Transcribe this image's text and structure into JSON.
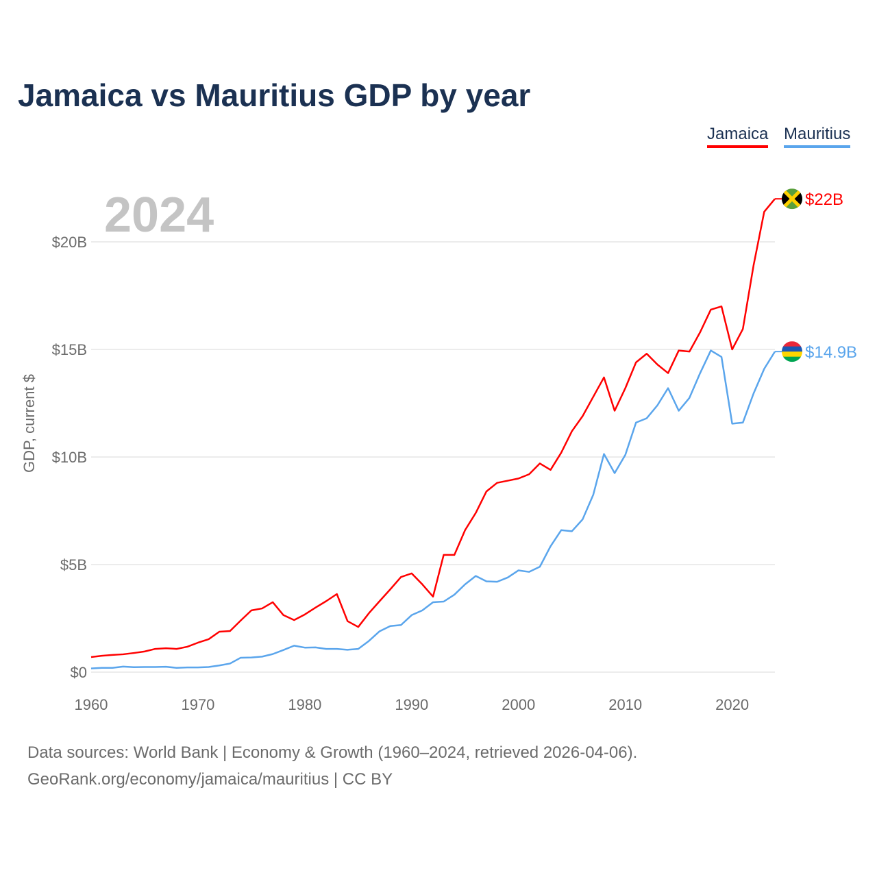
{
  "chart_data": {
    "type": "line",
    "title": "Jamaica vs Mauritius GDP by year",
    "ylabel": "GDP, current $",
    "xlabel": "",
    "year_label": "2024",
    "xlim": [
      1960,
      2024
    ],
    "ylim": [
      0,
      22
    ],
    "x_ticks": [
      1960,
      1970,
      1980,
      1990,
      2000,
      2010,
      2020
    ],
    "y_ticks": [
      {
        "value": 0,
        "label": "$0"
      },
      {
        "value": 5,
        "label": "$5B"
      },
      {
        "value": 10,
        "label": "$10B"
      },
      {
        "value": 15,
        "label": "$15B"
      },
      {
        "value": 20,
        "label": "$20B"
      }
    ],
    "grid": true,
    "legend_position": "top-right",
    "x": [
      1960,
      1961,
      1962,
      1963,
      1964,
      1965,
      1966,
      1967,
      1968,
      1969,
      1970,
      1971,
      1972,
      1973,
      1974,
      1975,
      1976,
      1977,
      1978,
      1979,
      1980,
      1981,
      1982,
      1983,
      1984,
      1985,
      1986,
      1987,
      1988,
      1989,
      1990,
      1991,
      1992,
      1993,
      1994,
      1995,
      1996,
      1997,
      1998,
      1999,
      2000,
      2001,
      2002,
      2003,
      2004,
      2005,
      2006,
      2007,
      2008,
      2009,
      2010,
      2011,
      2012,
      2013,
      2014,
      2015,
      2016,
      2017,
      2018,
      2019,
      2020,
      2021,
      2022,
      2023,
      2024
    ],
    "series": [
      {
        "name": "Jamaica",
        "color": "#ff0000",
        "end_label": "$22B",
        "flag": "jamaica-flag",
        "values": [
          0.7,
          0.76,
          0.8,
          0.83,
          0.89,
          0.96,
          1.08,
          1.11,
          1.08,
          1.18,
          1.37,
          1.53,
          1.88,
          1.91,
          2.4,
          2.87,
          2.96,
          3.25,
          2.65,
          2.42,
          2.68,
          3.0,
          3.3,
          3.63,
          2.37,
          2.1,
          2.74,
          3.3,
          3.85,
          4.42,
          4.59,
          4.08,
          3.51,
          5.45,
          5.45,
          6.6,
          7.4,
          8.4,
          8.8,
          8.9,
          9.0,
          9.2,
          9.7,
          9.4,
          10.2,
          11.2,
          11.9,
          12.8,
          13.7,
          12.15,
          13.2,
          14.4,
          14.8,
          14.3,
          13.9,
          14.95,
          14.9,
          15.8,
          16.85,
          17.0,
          15.0,
          15.95,
          18.9,
          21.4,
          22.0
        ]
      },
      {
        "name": "Mauritius",
        "color": "#5aa5ec",
        "end_label": "$14.9B",
        "flag": "mauritius-flag",
        "values": [
          0.17,
          0.2,
          0.2,
          0.26,
          0.23,
          0.24,
          0.24,
          0.25,
          0.2,
          0.22,
          0.22,
          0.24,
          0.31,
          0.4,
          0.67,
          0.68,
          0.72,
          0.84,
          1.03,
          1.23,
          1.14,
          1.15,
          1.08,
          1.08,
          1.04,
          1.08,
          1.45,
          1.9,
          2.14,
          2.19,
          2.65,
          2.87,
          3.25,
          3.28,
          3.6,
          4.08,
          4.47,
          4.22,
          4.2,
          4.4,
          4.73,
          4.66,
          4.9,
          5.85,
          6.6,
          6.55,
          7.1,
          8.25,
          10.14,
          9.25,
          10.1,
          11.6,
          11.8,
          12.4,
          13.2,
          12.15,
          12.75,
          13.9,
          14.95,
          14.65,
          11.55,
          11.6,
          12.95,
          14.1,
          14.9
        ]
      }
    ]
  },
  "footer": {
    "line1": "Data sources: World Bank | Economy & Growth (1960–2024, retrieved 2026-04-06).",
    "line2": "GeoRank.org/economy/jamaica/mauritius | CC BY"
  }
}
